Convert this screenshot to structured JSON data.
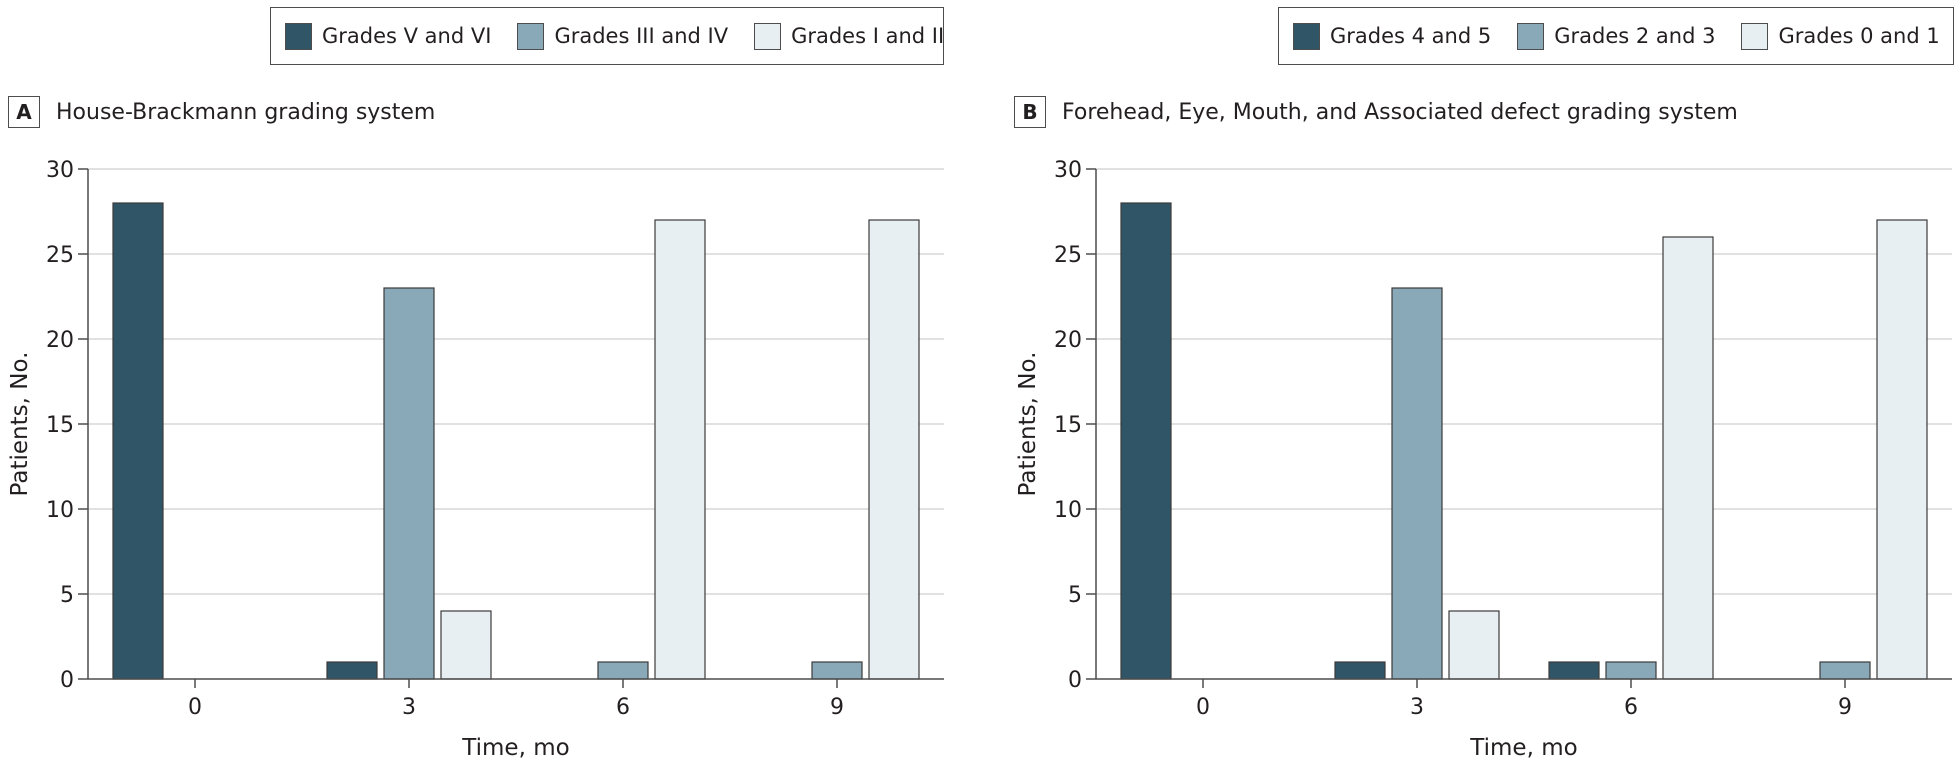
{
  "colors": {
    "dark": "#2f5566",
    "medium": "#8aa9b8",
    "light": "#e8eff3",
    "bar_stroke": "#3b3b3b",
    "grid": "#d7d7d7",
    "axis": "#4d4d4d"
  },
  "chart_data": [
    {
      "type": "bar",
      "panel_label": "A",
      "title": "House-Brackmann grading system",
      "xlabel": "Time, mo",
      "ylabel": "Patients, No.",
      "ylim": [
        0,
        30
      ],
      "yticks": [
        "0",
        "5",
        "10",
        "15",
        "20",
        "25",
        "30"
      ],
      "categories": [
        "0",
        "3",
        "6",
        "9"
      ],
      "grid": "horizontal",
      "legend_position": "top",
      "series": [
        {
          "name": "Grades V and VI",
          "color": "#2f5566",
          "values": [
            28,
            1,
            0,
            0
          ]
        },
        {
          "name": "Grades III and IV",
          "color": "#8aa9b8",
          "values": [
            0,
            23,
            1,
            1
          ]
        },
        {
          "name": "Grades I and II",
          "color": "#e8eff3",
          "values": [
            0,
            4,
            27,
            27
          ]
        }
      ]
    },
    {
      "type": "bar",
      "panel_label": "B",
      "title": "Forehead, Eye, Mouth, and Associated defect grading system",
      "xlabel": "Time, mo",
      "ylabel": "Patients, No.",
      "ylim": [
        0,
        30
      ],
      "yticks": [
        "0",
        "5",
        "10",
        "15",
        "20",
        "25",
        "30"
      ],
      "categories": [
        "0",
        "3",
        "6",
        "9"
      ],
      "grid": "horizontal",
      "legend_position": "top",
      "series": [
        {
          "name": "Grades 4 and 5",
          "color": "#2f5566",
          "values": [
            28,
            1,
            1,
            0
          ]
        },
        {
          "name": "Grades 2 and 3",
          "color": "#8aa9b8",
          "values": [
            0,
            23,
            1,
            1
          ]
        },
        {
          "name": "Grades 0 and 1",
          "color": "#e8eff3",
          "values": [
            0,
            4,
            26,
            27
          ]
        }
      ]
    }
  ]
}
